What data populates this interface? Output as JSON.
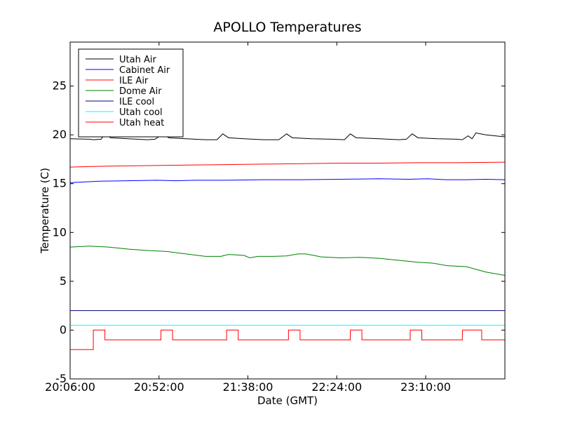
{
  "chart_data": {
    "type": "line",
    "title": "APOLLO Temperatures",
    "xlabel": "Date (GMT)",
    "ylabel": "Temperature (C)",
    "x_unit": "minutes since 20:06:00 GMT",
    "xlim": [
      0,
      225
    ],
    "ylim": [
      -5,
      29.5
    ],
    "grid": false,
    "legend_position": "top-left",
    "x_ticks": [
      {
        "value": 0,
        "label": "20:06:00"
      },
      {
        "value": 46,
        "label": "20:52:00"
      },
      {
        "value": 92,
        "label": "21:38:00"
      },
      {
        "value": 138,
        "label": "22:24:00"
      },
      {
        "value": 184,
        "label": "23:10:00"
      }
    ],
    "y_ticks": [
      {
        "value": -5,
        "label": "-5"
      },
      {
        "value": 0,
        "label": "0"
      },
      {
        "value": 5,
        "label": "5"
      },
      {
        "value": 10,
        "label": "10"
      },
      {
        "value": 15,
        "label": "15"
      },
      {
        "value": 20,
        "label": "20"
      },
      {
        "value": 25,
        "label": "25"
      }
    ],
    "series": [
      {
        "name": "Utah Air",
        "color": "#000000",
        "step": false,
        "points": [
          [
            0,
            19.6
          ],
          [
            10,
            19.55
          ],
          [
            12,
            19.5
          ],
          [
            16,
            19.55
          ],
          [
            18,
            20.1
          ],
          [
            21,
            19.7
          ],
          [
            30,
            19.6
          ],
          [
            40,
            19.5
          ],
          [
            44,
            19.55
          ],
          [
            48,
            20.1
          ],
          [
            51,
            19.7
          ],
          [
            60,
            19.6
          ],
          [
            70,
            19.5
          ],
          [
            76,
            19.5
          ],
          [
            79,
            20.1
          ],
          [
            82,
            19.7
          ],
          [
            90,
            19.6
          ],
          [
            100,
            19.5
          ],
          [
            108,
            19.5
          ],
          [
            112,
            20.1
          ],
          [
            115,
            19.7
          ],
          [
            125,
            19.6
          ],
          [
            135,
            19.55
          ],
          [
            142,
            19.5
          ],
          [
            145,
            20.1
          ],
          [
            148,
            19.7
          ],
          [
            160,
            19.6
          ],
          [
            170,
            19.5
          ],
          [
            174,
            19.55
          ],
          [
            177,
            20.1
          ],
          [
            180,
            19.7
          ],
          [
            190,
            19.6
          ],
          [
            200,
            19.55
          ],
          [
            203,
            19.5
          ],
          [
            206,
            19.9
          ],
          [
            208,
            19.6
          ],
          [
            210,
            20.2
          ],
          [
            215,
            20.0
          ],
          [
            220,
            19.9
          ],
          [
            225,
            19.8
          ]
        ]
      },
      {
        "name": "Cabinet Air",
        "color": "#0000ff",
        "step": false,
        "points": [
          [
            0,
            15.1
          ],
          [
            15,
            15.25
          ],
          [
            30,
            15.3
          ],
          [
            45,
            15.35
          ],
          [
            55,
            15.3
          ],
          [
            65,
            15.35
          ],
          [
            80,
            15.35
          ],
          [
            100,
            15.4
          ],
          [
            120,
            15.4
          ],
          [
            140,
            15.45
          ],
          [
            160,
            15.5
          ],
          [
            175,
            15.45
          ],
          [
            185,
            15.5
          ],
          [
            195,
            15.4
          ],
          [
            205,
            15.4
          ],
          [
            215,
            15.45
          ],
          [
            225,
            15.4
          ]
        ]
      },
      {
        "name": "ILE Air",
        "color": "#ff0000",
        "step": false,
        "points": [
          [
            0,
            16.7
          ],
          [
            20,
            16.8
          ],
          [
            40,
            16.85
          ],
          [
            60,
            16.9
          ],
          [
            80,
            16.95
          ],
          [
            100,
            17.0
          ],
          [
            120,
            17.05
          ],
          [
            140,
            17.1
          ],
          [
            160,
            17.1
          ],
          [
            180,
            17.15
          ],
          [
            200,
            17.15
          ],
          [
            225,
            17.2
          ]
        ]
      },
      {
        "name": "Dome Air",
        "color": "#008000",
        "step": false,
        "points": [
          [
            0,
            8.5
          ],
          [
            10,
            8.6
          ],
          [
            20,
            8.5
          ],
          [
            30,
            8.3
          ],
          [
            40,
            8.15
          ],
          [
            50,
            8.05
          ],
          [
            60,
            7.8
          ],
          [
            70,
            7.55
          ],
          [
            78,
            7.55
          ],
          [
            82,
            7.75
          ],
          [
            90,
            7.65
          ],
          [
            93,
            7.4
          ],
          [
            97,
            7.55
          ],
          [
            105,
            7.55
          ],
          [
            112,
            7.6
          ],
          [
            118,
            7.8
          ],
          [
            122,
            7.8
          ],
          [
            130,
            7.5
          ],
          [
            140,
            7.4
          ],
          [
            150,
            7.45
          ],
          [
            160,
            7.35
          ],
          [
            170,
            7.15
          ],
          [
            180,
            6.95
          ],
          [
            188,
            6.85
          ],
          [
            195,
            6.6
          ],
          [
            205,
            6.5
          ],
          [
            215,
            5.95
          ],
          [
            225,
            5.6
          ]
        ]
      },
      {
        "name": "ILE cool",
        "color": "#000080",
        "step": false,
        "points": [
          [
            0,
            2.0
          ],
          [
            225,
            2.0
          ]
        ]
      },
      {
        "name": "Utah cool",
        "color": "#00ffff",
        "step": false,
        "points": [
          [
            0,
            0.5
          ],
          [
            225,
            0.5
          ]
        ]
      },
      {
        "name": "Utah heat",
        "color": "#ff0000",
        "step": true,
        "points": [
          [
            0,
            -2
          ],
          [
            12,
            -2
          ],
          [
            12,
            0
          ],
          [
            18,
            0
          ],
          [
            18,
            -1
          ],
          [
            47,
            -1
          ],
          [
            47,
            0
          ],
          [
            53,
            0
          ],
          [
            53,
            -1
          ],
          [
            81,
            -1
          ],
          [
            81,
            0
          ],
          [
            87,
            0
          ],
          [
            87,
            -1
          ],
          [
            113,
            -1
          ],
          [
            113,
            0
          ],
          [
            119,
            0
          ],
          [
            119,
            -1
          ],
          [
            145,
            -1
          ],
          [
            145,
            0
          ],
          [
            151,
            0
          ],
          [
            151,
            -1
          ],
          [
            176,
            -1
          ],
          [
            176,
            0
          ],
          [
            182,
            0
          ],
          [
            182,
            -1
          ],
          [
            203,
            -1
          ],
          [
            203,
            0
          ],
          [
            213,
            0
          ],
          [
            213,
            -1
          ],
          [
            225,
            -1
          ]
        ]
      }
    ]
  }
}
